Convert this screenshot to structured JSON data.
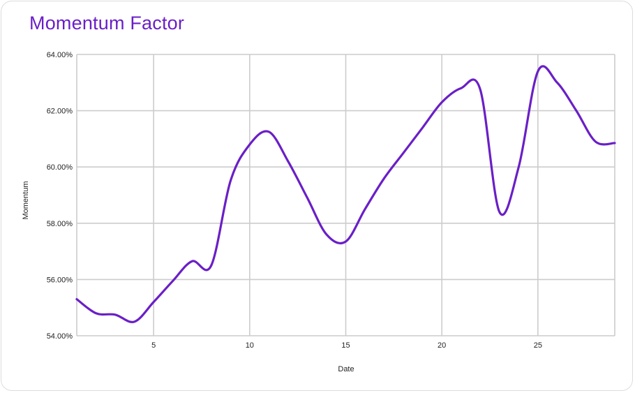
{
  "colors": {
    "line": "#6a1fc7",
    "title": "#6a1fc7",
    "grid": "#cccccc"
  },
  "chart_data": {
    "type": "line",
    "title": "Momentum Factor",
    "xlabel": "Date",
    "ylabel": "Momentum",
    "xlim": [
      1,
      29
    ],
    "ylim": [
      54,
      64
    ],
    "x_ticks": [
      5,
      10,
      15,
      20,
      25
    ],
    "x_tick_labels": [
      "5",
      "10",
      "15",
      "20",
      "25"
    ],
    "y_ticks": [
      54,
      56,
      58,
      60,
      62,
      64
    ],
    "y_tick_labels": [
      "54.00%",
      "56.00%",
      "58.00%",
      "60.00%",
      "62.00%",
      "64.00%"
    ],
    "grid": true,
    "series": [
      {
        "x": [
          1,
          2,
          3,
          4,
          5,
          6,
          7,
          8,
          9,
          10,
          11,
          12,
          13,
          14,
          15,
          16,
          17,
          18,
          19,
          20,
          21,
          22,
          23,
          24,
          25,
          26,
          27,
          28,
          29
        ],
        "values": [
          55.3,
          54.8,
          54.75,
          54.5,
          55.2,
          55.95,
          56.65,
          56.5,
          59.5,
          60.8,
          61.25,
          60.2,
          58.9,
          57.6,
          57.35,
          58.5,
          59.6,
          60.5,
          61.4,
          62.3,
          62.8,
          62.75,
          58.4,
          60.0,
          63.4,
          63.0,
          62.0,
          60.9,
          60.85
        ]
      }
    ]
  }
}
